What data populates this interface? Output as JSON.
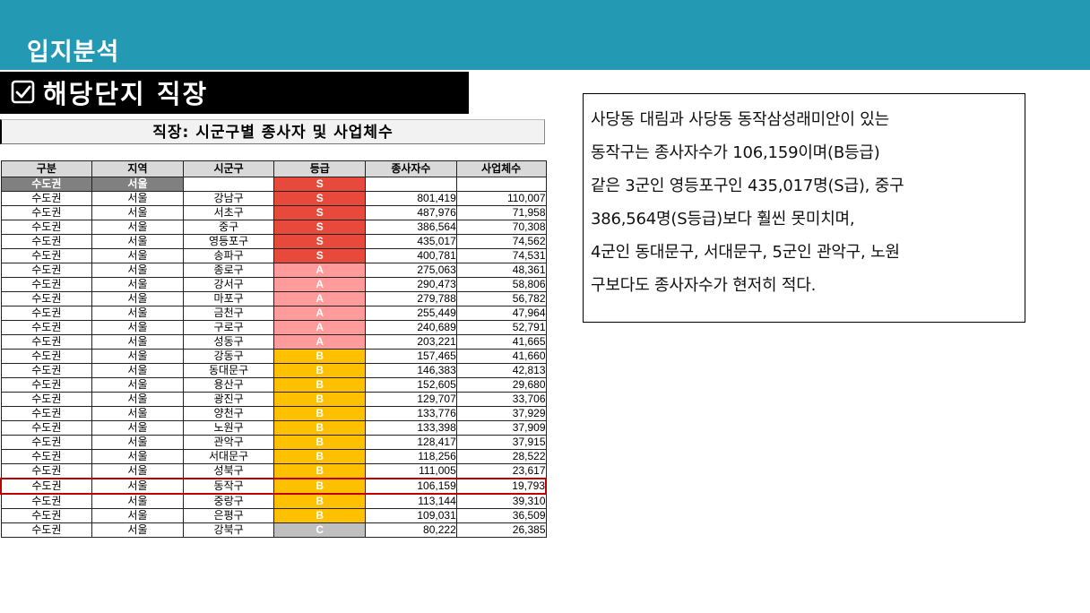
{
  "header": {
    "title": "입지분석"
  },
  "section": {
    "title": "해당단지 직장",
    "icon": "checkbox-icon"
  },
  "table": {
    "caption": "직장: 시군구별 종사자 및 사업체수",
    "columns": [
      "구분",
      "지역",
      "시군구",
      "등급",
      "종사자수",
      "사업체수"
    ],
    "subheader": {
      "area": "수도권",
      "region": "서울",
      "district": "",
      "grade": "S",
      "workers": "",
      "businesses": ""
    },
    "rows": [
      [
        "수도권",
        "서울",
        "강남구",
        "S",
        "801,419",
        "110,007"
      ],
      [
        "수도권",
        "서울",
        "서초구",
        "S",
        "487,976",
        "71,958"
      ],
      [
        "수도권",
        "서울",
        "중구",
        "S",
        "386,564",
        "70,308"
      ],
      [
        "수도권",
        "서울",
        "영등포구",
        "S",
        "435,017",
        "74,562"
      ],
      [
        "수도권",
        "서울",
        "송파구",
        "S",
        "400,781",
        "74,531"
      ],
      [
        "수도권",
        "서울",
        "종로구",
        "A",
        "275,063",
        "48,361"
      ],
      [
        "수도권",
        "서울",
        "강서구",
        "A",
        "290,473",
        "58,806"
      ],
      [
        "수도권",
        "서울",
        "마포구",
        "A",
        "279,788",
        "56,782"
      ],
      [
        "수도권",
        "서울",
        "금천구",
        "A",
        "255,449",
        "47,964"
      ],
      [
        "수도권",
        "서울",
        "구로구",
        "A",
        "240,689",
        "52,791"
      ],
      [
        "수도권",
        "서울",
        "성동구",
        "A",
        "203,221",
        "41,665"
      ],
      [
        "수도권",
        "서울",
        "강동구",
        "B",
        "157,465",
        "41,660"
      ],
      [
        "수도권",
        "서울",
        "동대문구",
        "B",
        "146,383",
        "42,813"
      ],
      [
        "수도권",
        "서울",
        "용산구",
        "B",
        "152,605",
        "29,680"
      ],
      [
        "수도권",
        "서울",
        "광진구",
        "B",
        "129,707",
        "33,706"
      ],
      [
        "수도권",
        "서울",
        "양천구",
        "B",
        "133,776",
        "37,929"
      ],
      [
        "수도권",
        "서울",
        "노원구",
        "B",
        "133,398",
        "37,909"
      ],
      [
        "수도권",
        "서울",
        "관악구",
        "B",
        "128,417",
        "37,915"
      ],
      [
        "수도권",
        "서울",
        "서대문구",
        "B",
        "118,256",
        "28,522"
      ],
      [
        "수도권",
        "서울",
        "성북구",
        "B",
        "111,005",
        "23,617"
      ],
      [
        "수도권",
        "서울",
        "동작구",
        "B",
        "106,159",
        "19,793"
      ],
      [
        "수도권",
        "서울",
        "중랑구",
        "B",
        "113,144",
        "39,310"
      ],
      [
        "수도권",
        "서울",
        "은평구",
        "B",
        "109,031",
        "36,509"
      ],
      [
        "수도권",
        "서울",
        "강북구",
        "C",
        "80,222",
        "26,385"
      ]
    ],
    "highlight_district": "동작구",
    "grade_colors": {
      "S": "#e74a3b",
      "A": "#ff9b9b",
      "B": "#ffc000",
      "C": "#bfbfbf"
    }
  },
  "note": {
    "lines": [
      "사당동 대림과 사당동 동작삼성래미안이 있는",
      "동작구는 종사자수가 106,159이며(B등급)",
      "같은 3군인 영등포구인 435,017명(S급), 중구",
      "386,564명(S등급)보다 훨씬 못미치며,",
      "4군인 동대문구, 서대문구, 5군인 관악구, 노원",
      "구보다도 종사자수가 현저히 적다."
    ]
  }
}
